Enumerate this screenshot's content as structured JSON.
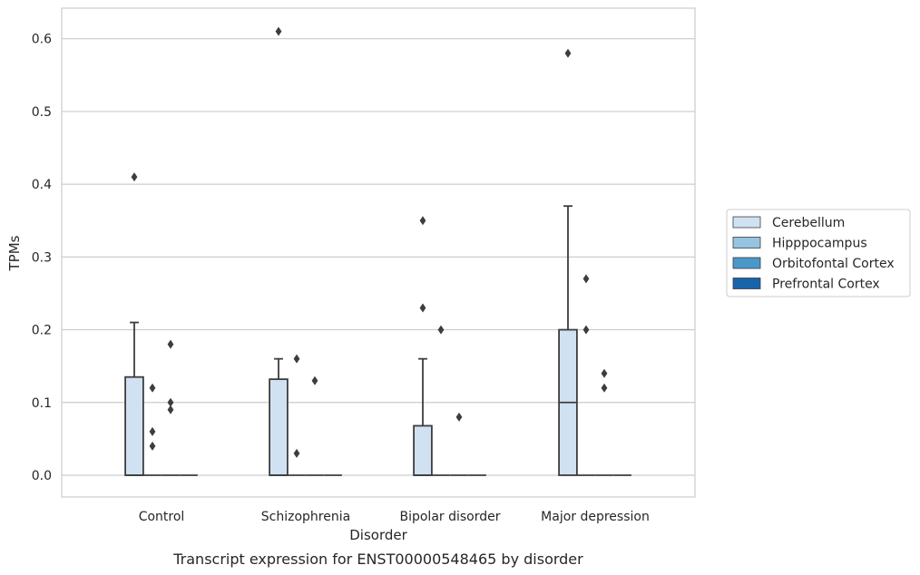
{
  "chart_data": {
    "type": "box",
    "title": "",
    "caption": "Transcript expression for ENST00000548465 by disorder",
    "xlabel": "Disorder",
    "ylabel": "TPMs",
    "ylim": [
      -0.03,
      0.64
    ],
    "yticks": [
      0.0,
      0.1,
      0.2,
      0.3,
      0.4,
      0.5,
      0.6
    ],
    "ytick_labels": [
      "0.0",
      "0.1",
      "0.2",
      "0.3",
      "0.4",
      "0.5",
      "0.6"
    ],
    "grid": "horizontal",
    "legend_position": "right",
    "categories": [
      "Control",
      "Schizophrenia",
      "Bipolar disorder",
      "Major depression"
    ],
    "series": [
      {
        "name": "Cerebellum",
        "color": "#d0e1f2",
        "boxes": [
          {
            "q1": 0.0,
            "median": 0.0,
            "q3": 0.135,
            "whisker_low": 0.0,
            "whisker_high": 0.21,
            "outliers": [
              0.41
            ]
          },
          {
            "q1": 0.0,
            "median": 0.0,
            "q3": 0.132,
            "whisker_low": 0.0,
            "whisker_high": 0.16,
            "outliers": [
              0.61
            ]
          },
          {
            "q1": 0.0,
            "median": 0.0,
            "q3": 0.068,
            "whisker_low": 0.0,
            "whisker_high": 0.16,
            "outliers": [
              0.23,
              0.35
            ]
          },
          {
            "q1": 0.0,
            "median": 0.1,
            "q3": 0.2,
            "whisker_low": 0.0,
            "whisker_high": 0.37,
            "outliers": [
              0.58
            ]
          }
        ]
      },
      {
        "name": "Hipppocampus",
        "color": "#94c4df",
        "boxes": [
          {
            "q1": 0.0,
            "median": 0.0,
            "q3": 0.0,
            "whisker_low": 0.0,
            "whisker_high": 0.0,
            "outliers": [
              0.04,
              0.06,
              0.12
            ]
          },
          {
            "q1": 0.0,
            "median": 0.0,
            "q3": 0.0,
            "whisker_low": 0.0,
            "whisker_high": 0.0,
            "outliers": [
              0.03,
              0.16
            ]
          },
          {
            "q1": 0.0,
            "median": 0.0,
            "q3": 0.0,
            "whisker_low": 0.0,
            "whisker_high": 0.0,
            "outliers": [
              0.2
            ]
          },
          {
            "q1": 0.0,
            "median": 0.0,
            "q3": 0.0,
            "whisker_low": 0.0,
            "whisker_high": 0.0,
            "outliers": [
              0.2,
              0.27
            ]
          }
        ]
      },
      {
        "name": "Orbitofontal Cortex",
        "color": "#4a98c9",
        "boxes": [
          {
            "q1": 0.0,
            "median": 0.0,
            "q3": 0.0,
            "whisker_low": 0.0,
            "whisker_high": 0.0,
            "outliers": [
              0.09,
              0.1,
              0.18
            ]
          },
          {
            "q1": 0.0,
            "median": 0.0,
            "q3": 0.0,
            "whisker_low": 0.0,
            "whisker_high": 0.0,
            "outliers": [
              0.13
            ]
          },
          {
            "q1": 0.0,
            "median": 0.0,
            "q3": 0.0,
            "whisker_low": 0.0,
            "whisker_high": 0.0,
            "outliers": [
              0.08
            ]
          },
          {
            "q1": 0.0,
            "median": 0.0,
            "q3": 0.0,
            "whisker_low": 0.0,
            "whisker_high": 0.0,
            "outliers": [
              0.12,
              0.14
            ]
          }
        ]
      },
      {
        "name": "Prefrontal Cortex",
        "color": "#1764ab",
        "boxes": [
          {
            "q1": 0.0,
            "median": 0.0,
            "q3": 0.0,
            "whisker_low": 0.0,
            "whisker_high": 0.0,
            "outliers": []
          },
          {
            "q1": 0.0,
            "median": 0.0,
            "q3": 0.0,
            "whisker_low": 0.0,
            "whisker_high": 0.0,
            "outliers": []
          },
          {
            "q1": 0.0,
            "median": 0.0,
            "q3": 0.0,
            "whisker_low": 0.0,
            "whisker_high": 0.0,
            "outliers": []
          },
          {
            "q1": 0.0,
            "median": 0.0,
            "q3": 0.0,
            "whisker_low": 0.0,
            "whisker_high": 0.0,
            "outliers": []
          }
        ]
      }
    ]
  }
}
